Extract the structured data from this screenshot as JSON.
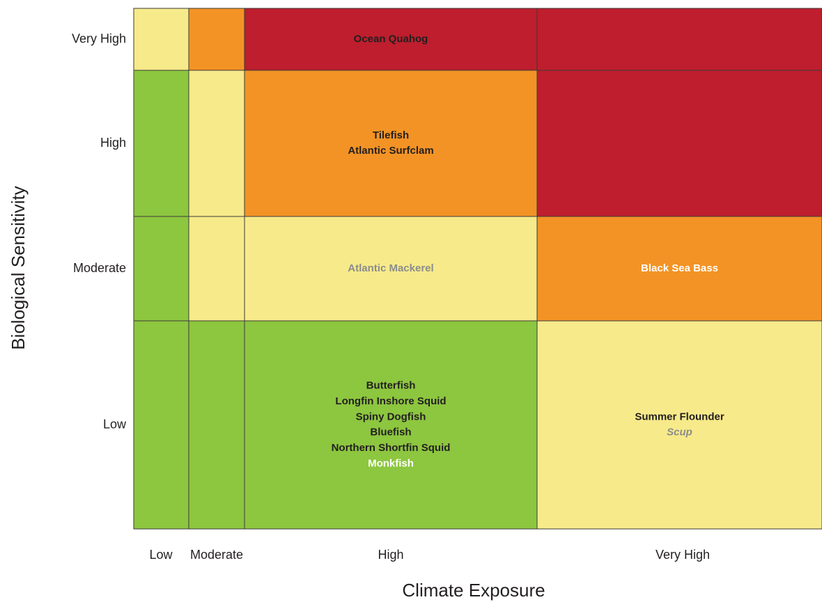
{
  "title_x": "Climate Exposure",
  "title_y": "Biological Sensitivity",
  "columns": [
    "Low",
    "Moderate",
    "High",
    "Very High"
  ],
  "rows": [
    {
      "label": "Very High",
      "cells": [
        {
          "color": "#f7ea8a"
        },
        {
          "color": "#f39325"
        },
        {
          "color": "#be1e2d",
          "species": [
            {
              "name": "Ocean Quahog",
              "color": "#231f20"
            }
          ]
        },
        {
          "color": "#be1e2d"
        }
      ]
    },
    {
      "label": "High",
      "cells": [
        {
          "color": "#8dc63f"
        },
        {
          "color": "#f7ea8a"
        },
        {
          "color": "#f39325",
          "species": [
            {
              "name": "Tilefish",
              "color": "#231f20"
            },
            {
              "name": "Atlantic Surfclam",
              "color": "#231f20"
            }
          ]
        },
        {
          "color": "#be1e2d"
        }
      ]
    },
    {
      "label": "Moderate",
      "cells": [
        {
          "color": "#8dc63f"
        },
        {
          "color": "#f7ea8a"
        },
        {
          "color": "#f7ea8a",
          "species": [
            {
              "name": "Atlantic Mackerel",
              "color": "#8c8c8c"
            }
          ]
        },
        {
          "color": "#f39325",
          "species": [
            {
              "name": "Black Sea Bass",
              "color": "#ffffff"
            }
          ]
        }
      ]
    },
    {
      "label": "Low",
      "cells": [
        {
          "color": "#8dc63f"
        },
        {
          "color": "#8dc63f"
        },
        {
          "color": "#8dc63f",
          "species": [
            {
              "name": "Butterfish",
              "color": "#231f20"
            },
            {
              "name": "Longfin Inshore Squid",
              "color": "#231f20"
            },
            {
              "name": "Spiny Dogfish",
              "color": "#231f20"
            },
            {
              "name": "Bluefish",
              "color": "#231f20"
            },
            {
              "name": "Northern Shortfin Squid",
              "color": "#231f20"
            },
            {
              "name": "Monkfish",
              "color": "#ffffff"
            }
          ]
        },
        {
          "color": "#f7ea8a",
          "species": [
            {
              "name": "Summer Flounder",
              "color": "#231f20"
            },
            {
              "name": "Scup",
              "color": "#8c8c8c",
              "style": "italic"
            }
          ]
        }
      ]
    }
  ]
}
